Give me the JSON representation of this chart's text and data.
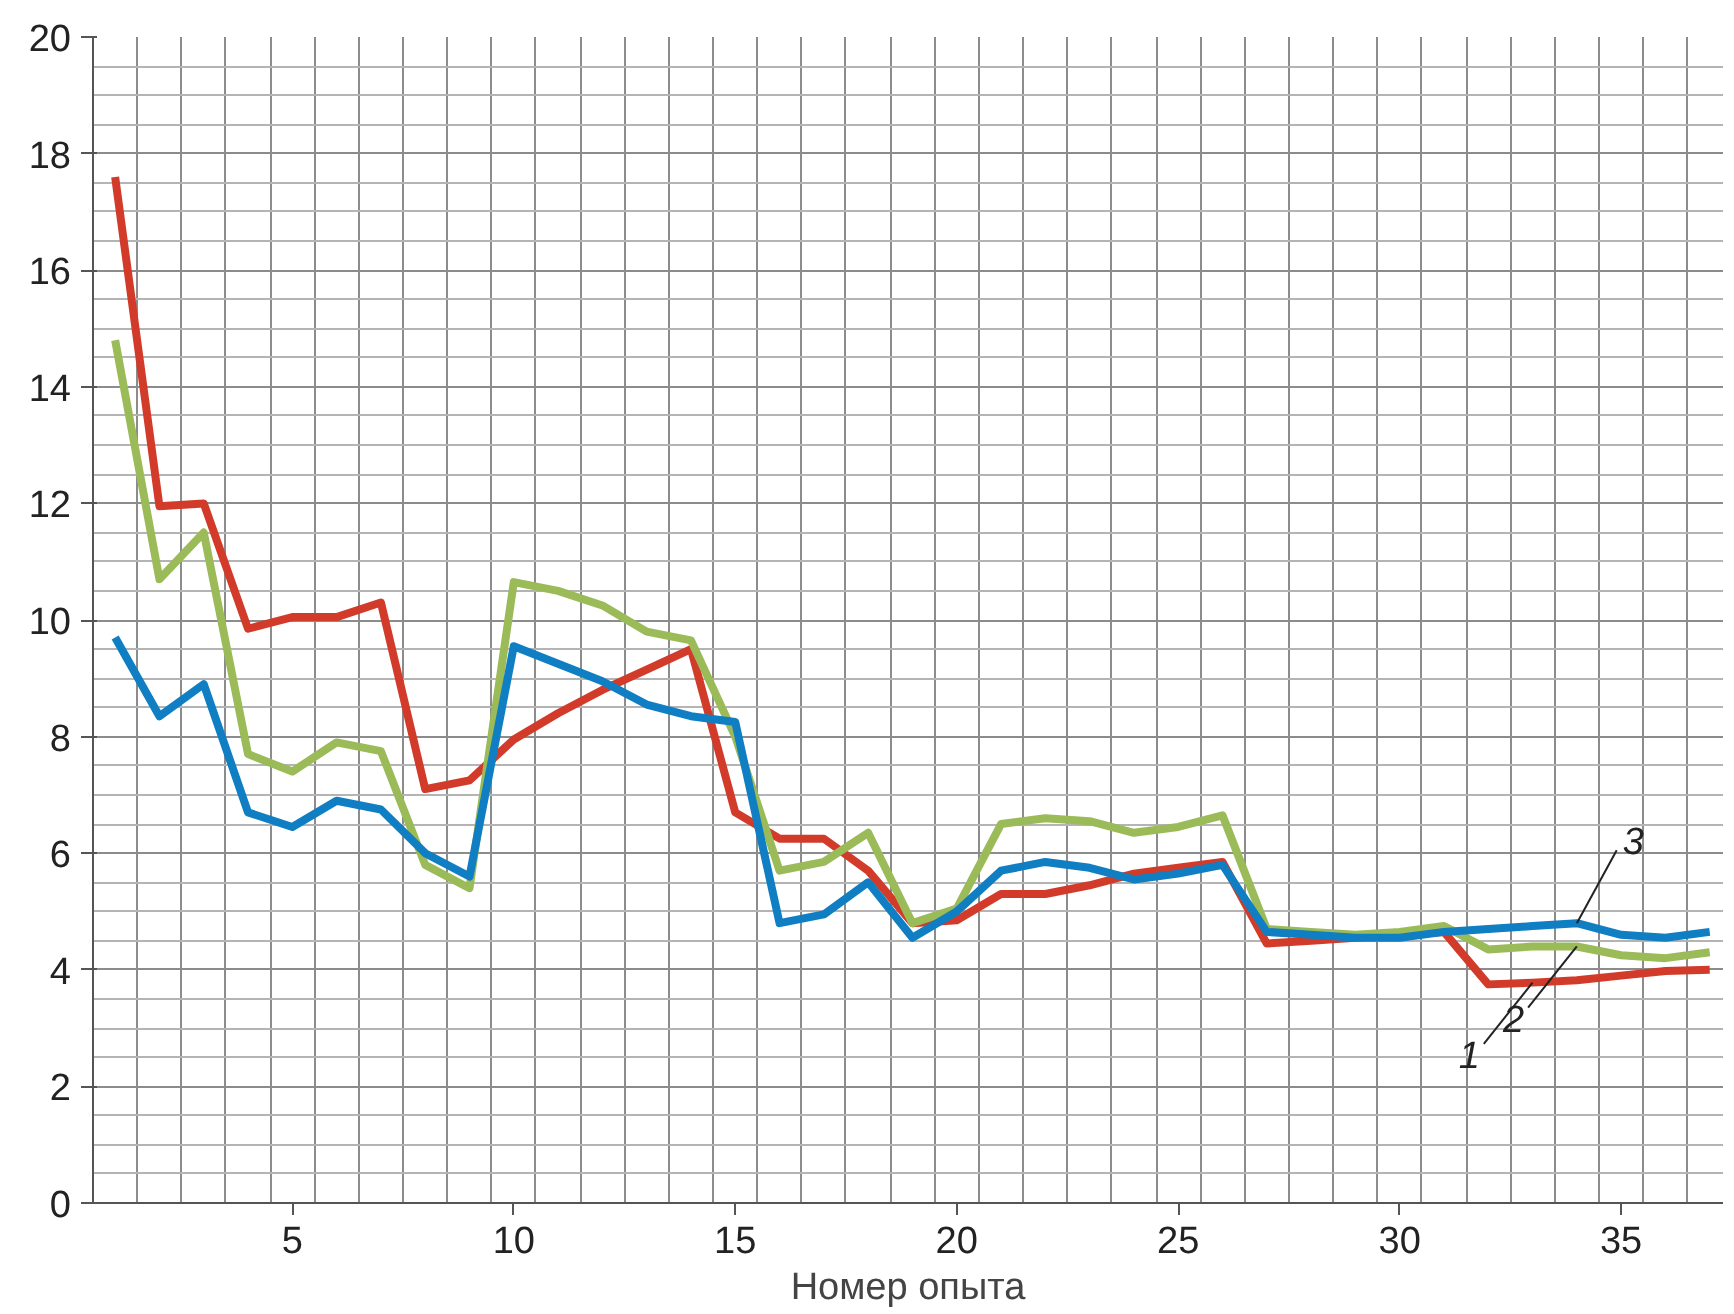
{
  "chart_data": {
    "type": "line",
    "xlabel": "Номер опыта",
    "x": [
      1,
      2,
      3,
      4,
      5,
      6,
      7,
      8,
      9,
      10,
      11,
      12,
      13,
      14,
      15,
      16,
      17,
      18,
      19,
      20,
      21,
      22,
      23,
      24,
      25,
      26,
      27,
      28,
      29,
      30,
      31,
      32,
      33,
      34,
      35,
      36,
      37
    ],
    "series": [
      {
        "name": "1",
        "color": "#d23b2a",
        "values": [
          17.6,
          11.95,
          12.0,
          9.85,
          10.05,
          10.05,
          10.3,
          7.1,
          7.25,
          7.95,
          8.4,
          8.8,
          9.15,
          9.5,
          6.7,
          6.25,
          6.25,
          5.7,
          4.8,
          4.85,
          5.3,
          5.3,
          5.45,
          5.65,
          5.75,
          5.85,
          4.45,
          4.5,
          4.55,
          4.6,
          4.65,
          3.75,
          3.78,
          3.82,
          3.9,
          3.98,
          4.0
        ]
      },
      {
        "name": "2",
        "color": "#9bbb59",
        "values": [
          14.8,
          10.7,
          11.5,
          7.7,
          7.4,
          7.9,
          7.75,
          5.8,
          5.4,
          10.65,
          10.5,
          10.25,
          9.8,
          9.65,
          8.0,
          5.7,
          5.85,
          6.35,
          4.8,
          5.05,
          6.5,
          6.6,
          6.55,
          6.35,
          6.45,
          6.65,
          4.7,
          4.65,
          4.6,
          4.65,
          4.75,
          4.35,
          4.4,
          4.4,
          4.25,
          4.2,
          4.3
        ]
      },
      {
        "name": "3",
        "color": "#0f7ec2",
        "values": [
          9.7,
          8.35,
          8.9,
          6.7,
          6.45,
          6.9,
          6.75,
          6.0,
          5.6,
          9.55,
          9.25,
          8.95,
          8.55,
          8.35,
          8.25,
          4.8,
          4.95,
          5.5,
          4.55,
          5.0,
          5.7,
          5.85,
          5.75,
          5.55,
          5.65,
          5.8,
          4.65,
          4.6,
          4.55,
          4.55,
          4.65,
          4.7,
          4.75,
          4.8,
          4.6,
          4.55,
          4.65
        ]
      }
    ],
    "legend": false,
    "xlim": [
      0.5,
      37.3
    ],
    "ylim": [
      0,
      20
    ],
    "xticks": [
      5,
      10,
      15,
      20,
      25,
      30,
      35
    ],
    "yticks": [
      0,
      2,
      4,
      6,
      8,
      10,
      12,
      14,
      16,
      18,
      20
    ],
    "grid": true,
    "line_style": "solid"
  }
}
